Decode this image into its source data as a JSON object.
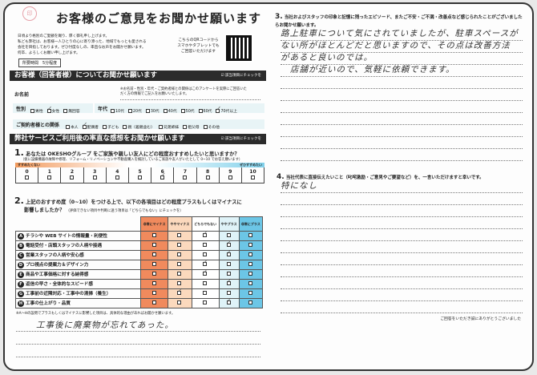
{
  "title": "お客様のご意見をお聞かせ願います",
  "stamp": "印",
  "intro": "日頃より格別のご愛顧を賜り、厚く御礼申し上げます。\n私ども弊社は、お客様一人ひとりの心に寄り添った、地域でもっとも愛される\n会社を目指しております。ぜひ忖度なしの、率直なお声をお聞かせ願います。\n何卒、よろしくお願い申し上げます。",
  "qr_text": "こちらのQRコードから\nスマホやタブレットでも\nご回答いただけます",
  "time_required": "所要時間　5分程度",
  "section1": {
    "title": "お客様（回答者様）についてお聞かせ願います",
    "tag": "☑ 該当項目にチェックを",
    "name_label": "お名前",
    "name_note": "※お名前・性別・年代・ご契約者様との関係はこのアンケートを実際にご回答いただく方の情報でご記入をお願いいたします。",
    "gender_label": "性別",
    "gender_options": [
      {
        "label": "男性",
        "checked": false
      },
      {
        "label": "女性",
        "checked": true
      },
      {
        "label": "無回答",
        "checked": false
      }
    ],
    "age_label": "年代",
    "age_options": [
      {
        "label": "10代",
        "checked": false
      },
      {
        "label": "20代",
        "checked": false
      },
      {
        "label": "30代",
        "checked": false
      },
      {
        "label": "40代",
        "checked": false
      },
      {
        "label": "50代",
        "checked": false
      },
      {
        "label": "60代",
        "checked": false
      },
      {
        "label": "70代以上",
        "checked": true
      }
    ],
    "relation_label": "ご契約者様との関係",
    "relation_options": [
      {
        "label": "本人",
        "checked": false
      },
      {
        "label": "配偶者",
        "checked": true
      },
      {
        "label": "子ども",
        "checked": false
      },
      {
        "label": "親（義親含む）",
        "checked": false
      },
      {
        "label": "兄弟姉妹",
        "checked": false
      },
      {
        "label": "祖父母",
        "checked": false
      },
      {
        "label": "その他",
        "checked": false
      }
    ]
  },
  "section2": {
    "title": "弊社サービスご利用後の率直な感想をお聞かせ願います",
    "tag": "☑ 該当項目にチェックを"
  },
  "q1": {
    "num": "1.",
    "text": "あなたは OKESHOグループ をご家族や親しい友人にどの程度おすすめしたいと思いますか？",
    "sub": "（仮に設備機器の故障や修理、リフォーム・リノベーションや不動産購入を検討しているご家族や友人がいたとして 0~10 でお答え願います）",
    "low": "すすめたくない",
    "high": "ぜひすすめたい",
    "scale": [
      "0",
      "1",
      "2",
      "3",
      "4",
      "5",
      "6",
      "7",
      "8",
      "9",
      "10"
    ],
    "selected": 6
  },
  "q2": {
    "num": "2.",
    "text": "上記のおすすめ度（0~10）をつける上で、以下の各項目はどの程度プラスもしくはマイナスに",
    "text2": "影響しましたか？",
    "sub": "（評価できない項目や判断に迷う項目は「どちらでもない」にチェックを）",
    "columns": [
      "非常にマイナス",
      "ややマイナス",
      "どちらでもない",
      "ややプラス",
      "非常にプラス"
    ],
    "column_colors": [
      "#f08a5d",
      "#fbd9bd",
      "#ffffff",
      "#dff3f8",
      "#6cc6e6"
    ],
    "rows": [
      {
        "key": "A",
        "label": "チラシや WEB サイトの情報量・利便性",
        "answer": 2
      },
      {
        "key": "B",
        "label": "電話受付・店頭スタッフの人柄や接遇",
        "answer": 3
      },
      {
        "key": "C",
        "label": "営業スタッフの人柄や安心感",
        "answer": 3
      },
      {
        "key": "D",
        "label": "プロ視点の提案力＆デザイン力",
        "answer": 2
      },
      {
        "key": "E",
        "label": "商品や工事価格に対する納得感",
        "answer": 2
      },
      {
        "key": "F",
        "label": "返信の早さ・全体的なスピード感",
        "answer": 3
      },
      {
        "key": "G",
        "label": "工事前の近隣対応・工事中の清掃（養生）",
        "answer": 1
      },
      {
        "key": "H",
        "label": "工事の仕上がり・品質",
        "answer": 3
      }
    ],
    "note": "※A〜Hの設問でプラスもしくはマイナスに影響した項目は、具体的な理由があればお聞かせ願います。",
    "answer": "工事後に廃棄物が忘れてあった。"
  },
  "q3": {
    "num": "3.",
    "text": "当社およびスタッフの印象と記憶に残ったエピソード、またご不安・ご不満・改善点など感じられたことがございましたらお聞かせ願います。",
    "answer_lines": [
      "路上駐車について気にされていましたが、駐車スペースが",
      "ない所がほとんどだと思いますので、その点は改善方法",
      "があると良いのでは。",
      "店舗が近いので、気軽に依頼できます。"
    ]
  },
  "q4": {
    "num": "4.",
    "text": "当社代表に直接伝えたいこと（叱咤激励・ご意見やご要望など）を、一言いただけますと幸いです。",
    "answer": "特になし"
  },
  "thanks": "ご回答をいただき誠にありがとうございました"
}
